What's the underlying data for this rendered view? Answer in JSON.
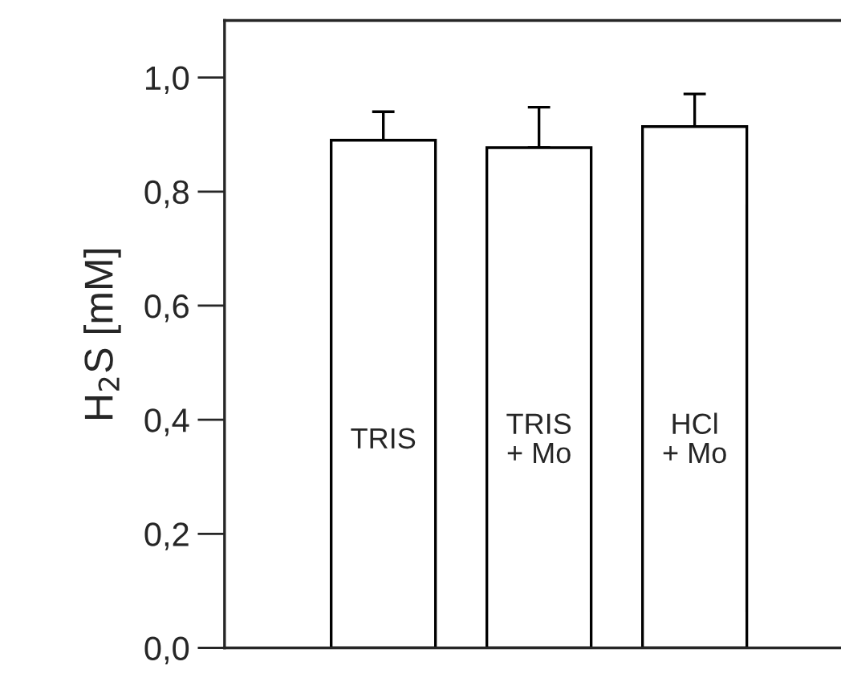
{
  "chart_data": {
    "type": "bar",
    "ylabel": "H$_{2}$S [mM]",
    "categories": [
      "TRIS",
      "TRIS\n+ Mo",
      "HCl\n+ Mo"
    ],
    "values": [
      0.89,
      0.877,
      0.914
    ],
    "errors": [
      [
        0.89,
        0.94
      ],
      [
        0.877,
        0.948
      ],
      [
        0.914,
        0.971
      ]
    ],
    "color": "#ffffff",
    "ylim": [
      0.0,
      1.1
    ],
    "yticks": [
      {
        "value": 0.0,
        "label": "0,0"
      },
      {
        "value": 0.2,
        "label": "0,2"
      },
      {
        "value": 0.4,
        "label": "0,4"
      },
      {
        "value": 0.6,
        "label": "0,6"
      },
      {
        "value": 0.8,
        "label": "0,8"
      },
      {
        "value": 1.0,
        "label": "1,0"
      }
    ],
    "grid": false,
    "legend": false
  }
}
